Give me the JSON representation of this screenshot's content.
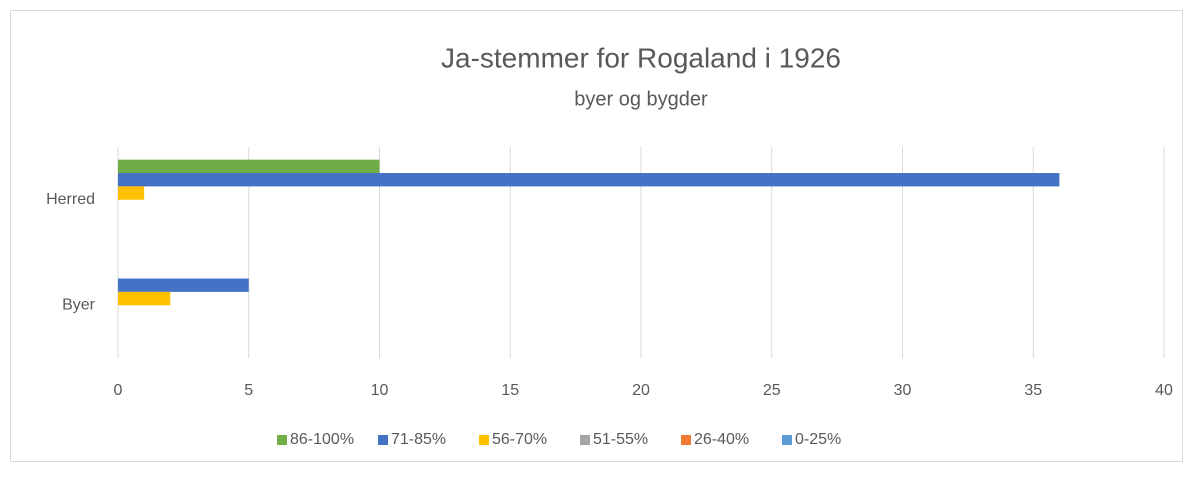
{
  "chart_data": {
    "type": "bar",
    "orientation": "horizontal",
    "title": "Ja-stemmer for Rogaland i 1926",
    "subtitle": "byer og bygder",
    "categories": [
      "Byer",
      "Herred"
    ],
    "series": [
      {
        "name": "86-100%",
        "color": "#70ad47",
        "values": [
          0,
          10
        ]
      },
      {
        "name": "71-85%",
        "color": "#4472c4",
        "values": [
          5,
          36
        ]
      },
      {
        "name": "56-70%",
        "color": "#ffc000",
        "values": [
          2,
          1
        ]
      },
      {
        "name": "51-55%",
        "color": "#a5a5a5",
        "values": [
          0,
          0
        ]
      },
      {
        "name": "26-40%",
        "color": "#ed7d31",
        "values": [
          0,
          0
        ]
      },
      {
        "name": "0-25%",
        "color": "#5b9bd5",
        "values": [
          0,
          0
        ]
      }
    ],
    "xlim": [
      0,
      40
    ],
    "xticks": [
      0,
      5,
      10,
      15,
      20,
      25,
      30,
      35,
      40
    ],
    "grid": true,
    "legend": "bottom"
  }
}
